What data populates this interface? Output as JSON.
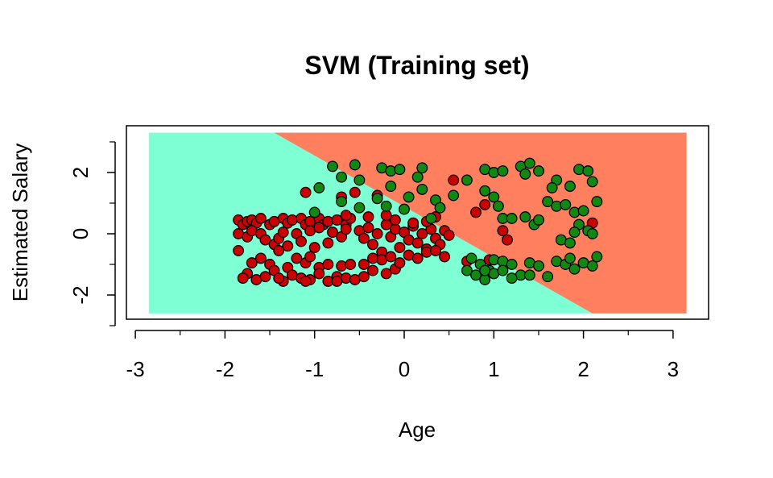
{
  "chart_data": {
    "type": "scatter",
    "title": "SVM (Training set)",
    "xlabel": "Age",
    "ylabel": "Estimated Salary",
    "xlim": [
      -3,
      3.3
    ],
    "ylim": [
      -2.8,
      3.5
    ],
    "x_ticks": [
      "-3",
      "-2",
      "-1",
      "0",
      "1",
      "2",
      "3"
    ],
    "y_ticks": [
      "-2",
      "0",
      "2"
    ],
    "grid": false,
    "decision_boundary": {
      "x_range": [
        -2.85,
        3.15
      ],
      "y_range": [
        -2.6,
        3.3
      ],
      "line_points": [
        [
          -1.45,
          3.3
        ],
        [
          2.1,
          -2.6
        ]
      ],
      "region_colors": {
        "class0": "#7fffd4",
        "class1": "#ff7f5f"
      }
    },
    "series": [
      {
        "color": "#cc0000",
        "points": [
          [
            -1.85,
            0.45
          ],
          [
            -1.8,
            0.3
          ],
          [
            -1.75,
            0.4
          ],
          [
            -1.7,
            0.45
          ],
          [
            -1.65,
            0.35
          ],
          [
            -1.6,
            0.5
          ],
          [
            -1.5,
            0.3
          ],
          [
            -1.45,
            0.4
          ],
          [
            -1.35,
            0.5
          ],
          [
            -1.3,
            0.35
          ],
          [
            -1.25,
            0.45
          ],
          [
            -1.15,
            0.5
          ],
          [
            -1.1,
            0.3
          ],
          [
            -1.05,
            0.4
          ],
          [
            -0.95,
            0.5
          ],
          [
            -0.9,
            0.3
          ],
          [
            -0.85,
            0.4
          ],
          [
            -0.75,
            0.45
          ],
          [
            -0.65,
            0.3
          ],
          [
            -0.6,
            0.5
          ],
          [
            -1.85,
            0.0
          ],
          [
            -1.75,
            -0.1
          ],
          [
            -1.7,
            0.1
          ],
          [
            -1.6,
            0.0
          ],
          [
            -1.55,
            -0.2
          ],
          [
            -1.45,
            -0.35
          ],
          [
            -1.4,
            -0.15
          ],
          [
            -1.35,
            0.05
          ],
          [
            -1.3,
            -0.4
          ],
          [
            -1.2,
            0.0
          ],
          [
            -1.15,
            -0.25
          ],
          [
            -1.05,
            0.1
          ],
          [
            -1.0,
            -0.45
          ],
          [
            -0.95,
            0.2
          ],
          [
            -0.85,
            -0.3
          ],
          [
            -0.8,
            0.05
          ],
          [
            -0.7,
            -0.1
          ],
          [
            -0.65,
            0.15
          ],
          [
            -1.85,
            -0.55
          ],
          [
            -1.7,
            -0.95
          ],
          [
            -1.6,
            -0.8
          ],
          [
            -1.5,
            -1.0
          ],
          [
            -1.4,
            -0.55
          ],
          [
            -1.3,
            -1.1
          ],
          [
            -1.2,
            -0.8
          ],
          [
            -1.1,
            -0.95
          ],
          [
            -1.05,
            -0.75
          ],
          [
            -0.95,
            -1.1
          ],
          [
            -0.85,
            -1.0
          ],
          [
            -0.7,
            -1.05
          ],
          [
            -0.6,
            -1.0
          ],
          [
            -1.75,
            -1.3
          ],
          [
            -1.65,
            -1.5
          ],
          [
            -1.55,
            -1.4
          ],
          [
            -1.45,
            -1.2
          ],
          [
            -1.35,
            -1.55
          ],
          [
            -1.25,
            -1.35
          ],
          [
            -1.15,
            -1.45
          ],
          [
            -1.05,
            -1.5
          ],
          [
            -0.95,
            -1.3
          ],
          [
            -0.85,
            -1.55
          ],
          [
            -0.75,
            -1.4
          ],
          [
            -0.65,
            -1.45
          ],
          [
            -0.55,
            -1.5
          ],
          [
            -0.45,
            -1.4
          ],
          [
            -0.35,
            -1.2
          ],
          [
            -0.2,
            -1.3
          ],
          [
            -0.1,
            -1.15
          ],
          [
            -1.8,
            -1.45
          ],
          [
            -1.4,
            -1.45
          ],
          [
            -1.1,
            -1.55
          ],
          [
            -0.75,
            -1.55
          ],
          [
            -1.1,
            1.35
          ],
          [
            -0.7,
            1.2
          ],
          [
            -0.55,
            1.35
          ],
          [
            -0.3,
            1.25
          ],
          [
            -0.65,
            0.6
          ],
          [
            -0.4,
            0.55
          ],
          [
            -0.5,
            0.1
          ],
          [
            -0.45,
            -0.15
          ],
          [
            -0.4,
            0.2
          ],
          [
            -0.35,
            -0.35
          ],
          [
            -0.3,
            0.0
          ],
          [
            -0.25,
            -0.6
          ],
          [
            -0.2,
            0.3
          ],
          [
            -0.15,
            -0.1
          ],
          [
            -0.1,
            0.15
          ],
          [
            -0.05,
            -0.45
          ],
          [
            0.0,
            0.05
          ],
          [
            0.05,
            -0.2
          ],
          [
            0.1,
            0.25
          ],
          [
            0.15,
            -0.3
          ],
          [
            0.2,
            0.0
          ],
          [
            0.25,
            -0.5
          ],
          [
            0.3,
            0.15
          ],
          [
            0.35,
            -0.15
          ],
          [
            0.4,
            -0.35
          ],
          [
            0.45,
            0.1
          ],
          [
            0.5,
            -0.05
          ],
          [
            -0.25,
            -0.85
          ],
          [
            -0.15,
            -0.75
          ],
          [
            -0.05,
            -0.95
          ],
          [
            0.05,
            -0.7
          ],
          [
            0.15,
            -0.8
          ],
          [
            0.25,
            -0.6
          ],
          [
            0.35,
            -0.55
          ],
          [
            0.45,
            -0.75
          ],
          [
            -0.35,
            -0.8
          ],
          [
            -0.45,
            -1.0
          ],
          [
            -0.2,
            0.6
          ],
          [
            -0.1,
            0.45
          ],
          [
            0.1,
            0.35
          ],
          [
            0.25,
            0.4
          ],
          [
            0.35,
            0.55
          ],
          [
            0.55,
            1.75
          ],
          [
            0.8,
            0.7
          ],
          [
            0.9,
            0.95
          ],
          [
            0.95,
            -0.85
          ],
          [
            1.1,
            0.1
          ],
          [
            1.15,
            -0.2
          ],
          [
            2.1,
            0.35
          ],
          [
            0.7,
            -0.9
          ]
        ]
      },
      {
        "color": "#118811",
        "points": [
          [
            -0.8,
            2.2
          ],
          [
            -0.7,
            1.85
          ],
          [
            -0.55,
            2.25
          ],
          [
            -0.25,
            2.15
          ],
          [
            -0.15,
            2.05
          ],
          [
            -0.05,
            2.1
          ],
          [
            0.2,
            2.15
          ],
          [
            0.15,
            1.85
          ],
          [
            -0.5,
            1.75
          ],
          [
            -0.95,
            1.5
          ],
          [
            -0.7,
            1.05
          ],
          [
            -0.3,
            1.15
          ],
          [
            -0.15,
            1.55
          ],
          [
            0.05,
            1.2
          ],
          [
            0.2,
            1.45
          ],
          [
            0.35,
            1.1
          ],
          [
            0.55,
            1.25
          ],
          [
            0.7,
            1.75
          ],
          [
            -1.0,
            0.7
          ],
          [
            -0.5,
            0.85
          ],
          [
            -0.2,
            0.9
          ],
          [
            0.0,
            0.8
          ],
          [
            0.3,
            0.5
          ],
          [
            0.4,
            0.85
          ],
          [
            0.9,
            1.4
          ],
          [
            0.9,
            2.1
          ],
          [
            1.0,
            2.0
          ],
          [
            1.1,
            2.05
          ],
          [
            1.3,
            2.2
          ],
          [
            1.4,
            2.3
          ],
          [
            1.35,
            1.95
          ],
          [
            1.5,
            2.05
          ],
          [
            1.7,
            1.75
          ],
          [
            1.65,
            1.5
          ],
          [
            1.85,
            1.55
          ],
          [
            1.95,
            2.1
          ],
          [
            2.05,
            2.05
          ],
          [
            2.1,
            1.7
          ],
          [
            2.15,
            1.05
          ],
          [
            1.0,
            1.2
          ],
          [
            1.05,
            0.9
          ],
          [
            1.1,
            0.5
          ],
          [
            1.2,
            0.5
          ],
          [
            1.35,
            0.55
          ],
          [
            1.45,
            0.3
          ],
          [
            1.5,
            0.45
          ],
          [
            1.6,
            1.05
          ],
          [
            1.7,
            0.9
          ],
          [
            1.8,
            0.95
          ],
          [
            1.9,
            0.7
          ],
          [
            2.0,
            0.75
          ],
          [
            1.95,
            0.3
          ],
          [
            2.05,
            0.1
          ],
          [
            1.75,
            -0.2
          ],
          [
            1.85,
            -0.3
          ],
          [
            1.9,
            0.05
          ],
          [
            2.1,
            0.0
          ],
          [
            0.75,
            -0.8
          ],
          [
            0.85,
            -1.0
          ],
          [
            0.95,
            -1.2
          ],
          [
            1.0,
            -0.85
          ],
          [
            1.1,
            -0.9
          ],
          [
            1.2,
            -1.0
          ],
          [
            1.3,
            -1.35
          ],
          [
            1.4,
            -0.95
          ],
          [
            1.5,
            -1.05
          ],
          [
            1.6,
            -1.4
          ],
          [
            1.7,
            -0.9
          ],
          [
            1.8,
            -1.0
          ],
          [
            1.9,
            -1.15
          ],
          [
            2.0,
            -0.95
          ],
          [
            2.1,
            -1.05
          ],
          [
            2.15,
            -0.75
          ],
          [
            0.7,
            -1.2
          ],
          [
            0.8,
            -1.35
          ],
          [
            0.9,
            -1.5
          ],
          [
            1.0,
            -1.3
          ],
          [
            1.1,
            -1.2
          ],
          [
            1.2,
            -1.45
          ],
          [
            1.4,
            -1.35
          ],
          [
            0.9,
            -1.2
          ],
          [
            1.85,
            -0.8
          ]
        ]
      }
    ]
  }
}
